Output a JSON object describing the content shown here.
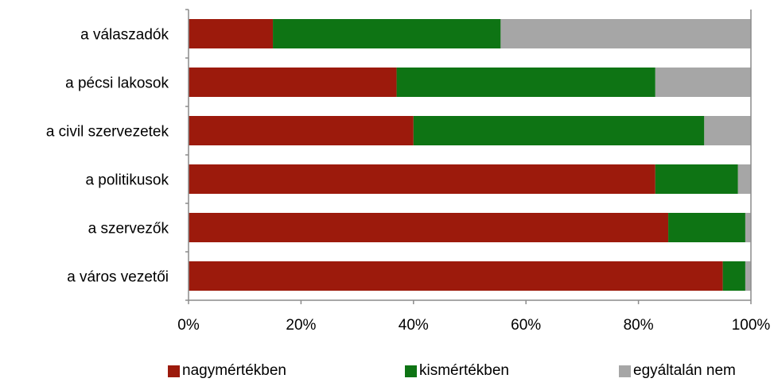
{
  "chart_data": {
    "type": "bar",
    "orientation": "horizontal",
    "stacked": "percent",
    "categories": [
      "a válaszadók",
      "a pécsi lakosok",
      "a civil szervezetek",
      "a politikusok",
      "a szervezők",
      "a város vezetői"
    ],
    "series": [
      {
        "name": "nagymértékben",
        "color": "#9c1a0c",
        "values": [
          15,
          37,
          40,
          83,
          85.3,
          95
        ]
      },
      {
        "name": "kismértékben",
        "color": "#0e7414",
        "values": [
          40.5,
          46,
          51.7,
          14.7,
          13.7,
          4
        ]
      },
      {
        "name": "egyáltalán nem",
        "color": "#a6a6a6",
        "values": [
          44.5,
          17,
          8.3,
          2.3,
          1,
          1
        ]
      }
    ],
    "x_ticks": [
      "0%",
      "20%",
      "40%",
      "60%",
      "80%",
      "100%"
    ],
    "xlim": [
      0,
      100
    ],
    "grid": false,
    "legend_position": "bottom"
  }
}
